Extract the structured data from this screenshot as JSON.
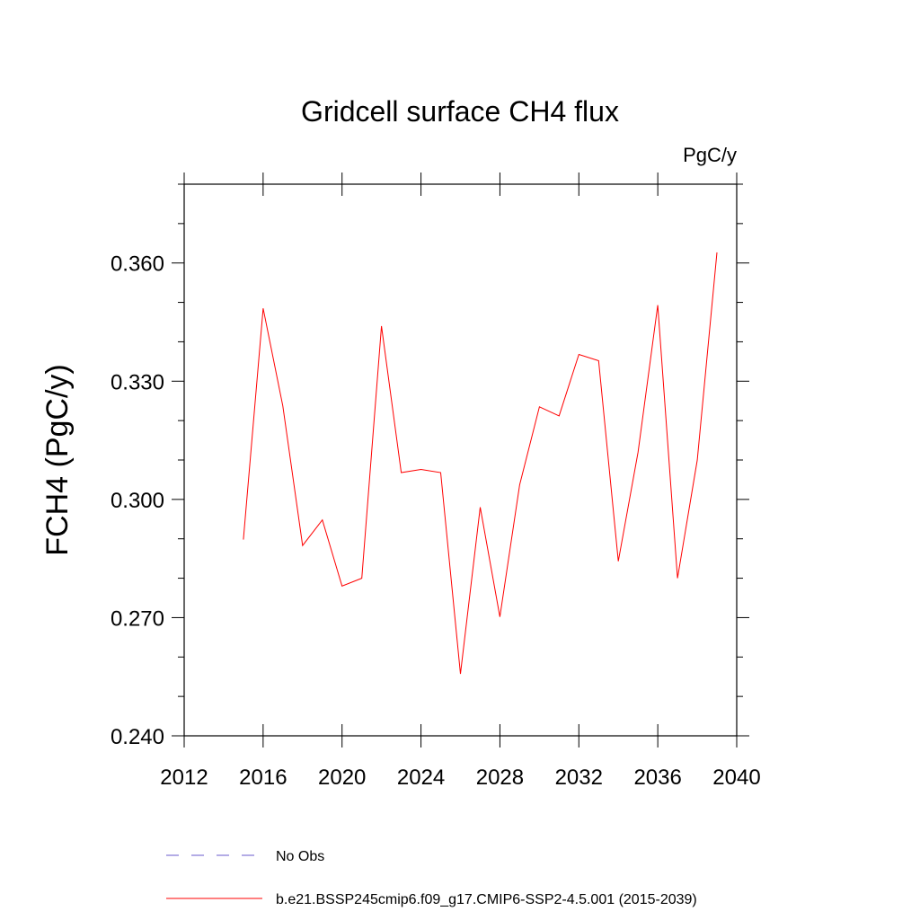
{
  "chart_data": {
    "type": "line",
    "title": "Gridcell surface CH4 flux",
    "units": "PgC/y",
    "xlabel": "",
    "ylabel": "FCH4  (PgC/y)",
    "xlim": [
      2012,
      2040
    ],
    "ylim": [
      0.24,
      0.38
    ],
    "x_ticks": [
      2012,
      2016,
      2020,
      2024,
      2028,
      2032,
      2036,
      2040
    ],
    "x_tick_labels": [
      "2012",
      "2016",
      "2020",
      "2024",
      "2028",
      "2032",
      "2036",
      "2040"
    ],
    "y_ticks": [
      0.24,
      0.27,
      0.3,
      0.33,
      0.36
    ],
    "y_tick_labels": [
      "0.240",
      "0.270",
      "0.300",
      "0.330",
      "0.360"
    ],
    "grid": false,
    "series": [
      {
        "name": "b.e21.BSSP245cmip6.f09_g17.CMIP6-SSP2-4.5.001 (2015-2039)",
        "color": "#ff0000",
        "x": [
          2015,
          2016,
          2017,
          2018,
          2019,
          2020,
          2021,
          2022,
          2023,
          2024,
          2025,
          2026,
          2027,
          2028,
          2029,
          2030,
          2031,
          2032,
          2033,
          2034,
          2035,
          2036,
          2037,
          2038,
          2039
        ],
        "values": [
          0.2898,
          0.3485,
          0.3237,
          0.2883,
          0.2948,
          0.278,
          0.28,
          0.344,
          0.3068,
          0.3076,
          0.3068,
          0.2557,
          0.298,
          0.2702,
          0.3037,
          0.3235,
          0.3212,
          0.3368,
          0.3352,
          0.2843,
          0.312,
          0.3493,
          0.28,
          0.31,
          0.3627
        ]
      }
    ],
    "legend": [
      {
        "label": "No Obs",
        "color": "#6a5acd",
        "style": "dashed"
      },
      {
        "label": "b.e21.BSSP245cmip6.f09_g17.CMIP6-SSP2-4.5.001 (2015-2039)",
        "color": "#ff0000",
        "style": "solid"
      }
    ]
  }
}
